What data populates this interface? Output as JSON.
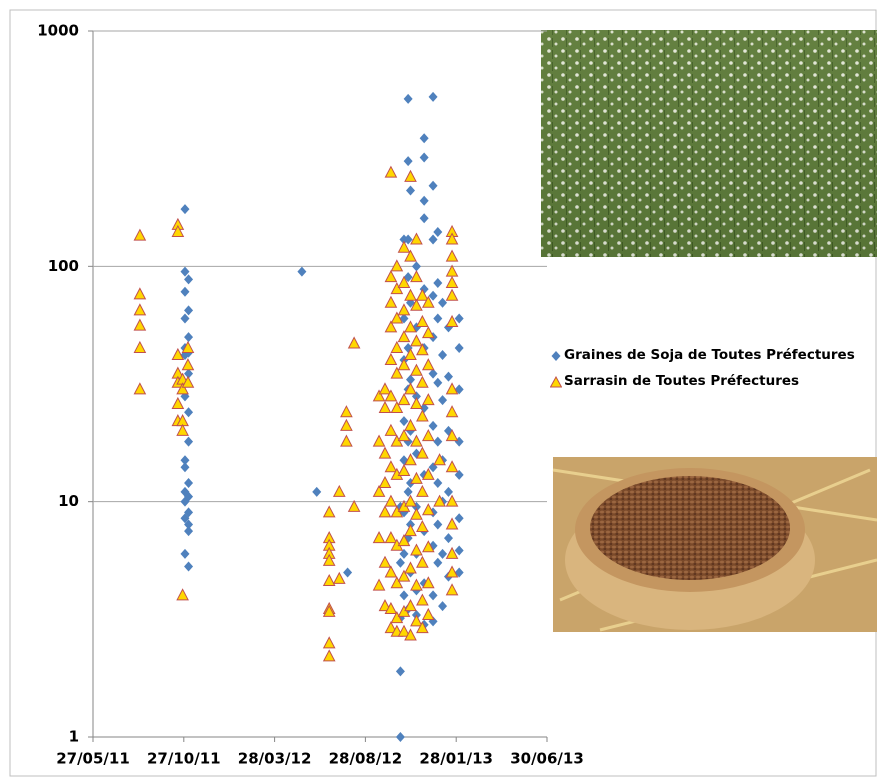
{
  "chart_data": {
    "type": "scatter",
    "ylog": true,
    "grid": true,
    "ylim": [
      1,
      1000
    ],
    "yticks": [
      1,
      10,
      100,
      1000
    ],
    "xlim": [
      "27/05/11",
      "30/06/13"
    ],
    "xticks": [
      "27/05/11",
      "27/10/11",
      "28/03/12",
      "28/08/12",
      "28/01/13",
      "30/06/13"
    ],
    "series": [
      {
        "name": "Graines de Soja de Toutes Préfectures",
        "color": "#4f81bd",
        "marker": "diamond",
        "x": [
          "29/10/11",
          "29/10/11",
          "29/10/11",
          "29/10/11",
          "29/10/11",
          "29/10/11",
          "29/10/11",
          "29/10/11",
          "29/10/11",
          "29/10/11",
          "29/10/11",
          "29/10/11",
          "29/10/11",
          "04/11/11",
          "04/11/11",
          "04/11/11",
          "04/11/11",
          "04/11/11",
          "04/11/11",
          "04/11/11",
          "04/11/11",
          "04/11/11",
          "04/11/11",
          "04/11/11",
          "04/11/11",
          "04/11/11",
          "13/05/12",
          "07/06/12",
          "29/07/12",
          "26/10/12",
          "26/10/12",
          "26/10/12",
          "26/10/12",
          "26/10/12",
          "01/11/12",
          "01/11/12",
          "01/11/12",
          "01/11/12",
          "01/11/12",
          "01/11/12",
          "01/11/12",
          "01/11/12",
          "08/11/12",
          "08/11/12",
          "08/11/12",
          "08/11/12",
          "08/11/12",
          "08/11/12",
          "08/11/12",
          "08/11/12",
          "08/11/12",
          "08/11/12",
          "12/11/12",
          "12/11/12",
          "12/11/12",
          "12/11/12",
          "12/11/12",
          "12/11/12",
          "12/11/12",
          "22/11/12",
          "22/11/12",
          "22/11/12",
          "22/11/12",
          "22/11/12",
          "22/11/12",
          "22/11/12",
          "22/11/12",
          "05/12/12",
          "05/12/12",
          "05/12/12",
          "05/12/12",
          "05/12/12",
          "05/12/12",
          "05/12/12",
          "05/12/12",
          "05/12/12",
          "05/12/12",
          "05/12/12",
          "20/12/12",
          "20/12/12",
          "20/12/12",
          "20/12/12",
          "20/12/12",
          "20/12/12",
          "20/12/12",
          "20/12/12",
          "20/12/12",
          "20/12/12",
          "20/12/12",
          "20/12/12",
          "28/12/12",
          "28/12/12",
          "28/12/12",
          "28/12/12",
          "28/12/12",
          "28/12/12",
          "28/12/12",
          "28/12/12",
          "05/01/13",
          "05/01/13",
          "05/01/13",
          "05/01/13",
          "05/01/13",
          "05/01/13",
          "05/01/13",
          "15/01/13",
          "15/01/13",
          "15/01/13",
          "15/01/13",
          "15/01/13",
          "15/01/13",
          "02/02/13",
          "02/02/13",
          "02/02/13",
          "02/02/13",
          "02/02/13",
          "02/02/13",
          "02/02/13",
          "02/02/13"
        ],
        "values": [
          175,
          95,
          78,
          60,
          45,
          42,
          28,
          15,
          14,
          11,
          10,
          8.5,
          6,
          88,
          65,
          50,
          43,
          35,
          24,
          18,
          12,
          10.5,
          9,
          8,
          7.5,
          5.3,
          95,
          11,
          5,
          1.9,
          1,
          9.5,
          5.5,
          3.2,
          130,
          60,
          40,
          22,
          15,
          9,
          6,
          4,
          515,
          280,
          130,
          90,
          45,
          30,
          18,
          11,
          7,
          3.5,
          210,
          70,
          33,
          20,
          12,
          8,
          5,
          100,
          55,
          28,
          16,
          9.5,
          6,
          4.2,
          3.3,
          350,
          290,
          190,
          160,
          80,
          45,
          25,
          13,
          7.5,
          4.5,
          3,
          525,
          220,
          130,
          75,
          50,
          35,
          21,
          14,
          9,
          6.5,
          4,
          3.1,
          140,
          85,
          60,
          32,
          18,
          12,
          8,
          5.5,
          70,
          42,
          27,
          15,
          10,
          6,
          3.6,
          55,
          34,
          20,
          11,
          7,
          4.8,
          60,
          45,
          30,
          18,
          13,
          8.5,
          6.2,
          5
        ]
      },
      {
        "name": "Sarrasin de Toutes Préfectures",
        "color": "#ffd700",
        "marker": "triangle",
        "x": [
          "14/08/11",
          "14/08/11",
          "14/08/11",
          "14/08/11",
          "14/08/11",
          "14/08/11",
          "17/10/11",
          "17/10/11",
          "17/10/11",
          "17/10/11",
          "17/10/11",
          "17/10/11",
          "17/10/11",
          "25/10/11",
          "25/10/11",
          "25/10/11",
          "25/10/11",
          "25/10/11",
          "03/11/11",
          "03/11/11",
          "03/11/11",
          "28/06/12",
          "28/06/12",
          "28/06/12",
          "28/06/12",
          "28/06/12",
          "28/06/12",
          "28/06/12",
          "28/06/12",
          "28/06/12",
          "28/06/12",
          "15/07/12",
          "15/07/12",
          "27/07/12",
          "27/07/12",
          "27/07/12",
          "09/08/12",
          "09/08/12",
          "20/09/12",
          "20/09/12",
          "20/09/12",
          "20/09/12",
          "20/09/12",
          "30/09/12",
          "30/09/12",
          "30/09/12",
          "30/09/12",
          "30/09/12",
          "30/09/12",
          "30/09/12",
          "10/10/12",
          "10/10/12",
          "10/10/12",
          "10/10/12",
          "10/10/12",
          "10/10/12",
          "10/10/12",
          "10/10/12",
          "10/10/12",
          "10/10/12",
          "10/10/12",
          "10/10/12",
          "10/10/12",
          "20/10/12",
          "20/10/12",
          "20/10/12",
          "20/10/12",
          "20/10/12",
          "20/10/12",
          "20/10/12",
          "20/10/12",
          "20/10/12",
          "20/10/12",
          "20/10/12",
          "20/10/12",
          "20/10/12",
          "01/11/12",
          "01/11/12",
          "01/11/12",
          "01/11/12",
          "01/11/12",
          "01/11/12",
          "01/11/12",
          "01/11/12",
          "01/11/12",
          "01/11/12",
          "01/11/12",
          "01/11/12",
          "01/11/12",
          "12/11/12",
          "12/11/12",
          "12/11/12",
          "12/11/12",
          "12/11/12",
          "12/11/12",
          "12/11/12",
          "12/11/12",
          "12/11/12",
          "12/11/12",
          "12/11/12",
          "12/11/12",
          "12/11/12",
          "22/11/12",
          "22/11/12",
          "22/11/12",
          "22/11/12",
          "22/11/12",
          "22/11/12",
          "22/11/12",
          "22/11/12",
          "22/11/12",
          "22/11/12",
          "22/11/12",
          "22/11/12",
          "02/12/12",
          "02/12/12",
          "02/12/12",
          "02/12/12",
          "02/12/12",
          "02/12/12",
          "02/12/12",
          "02/12/12",
          "02/12/12",
          "02/12/12",
          "02/12/12",
          "12/12/12",
          "12/12/12",
          "12/12/12",
          "12/12/12",
          "12/12/12",
          "12/12/12",
          "12/12/12",
          "12/12/12",
          "12/12/12",
          "12/12/12",
          "31/12/12",
          "31/12/12",
          "21/01/13",
          "21/01/13",
          "21/01/13",
          "21/01/13",
          "21/01/13",
          "21/01/13",
          "21/01/13",
          "21/01/13",
          "21/01/13",
          "21/01/13",
          "21/01/13",
          "21/01/13",
          "21/01/13",
          "21/01/13",
          "21/01/13",
          "21/01/13"
        ],
        "values": [
          135,
          76,
          65,
          56,
          45,
          30,
          150,
          140,
          42,
          35,
          32,
          26,
          22,
          33,
          30,
          22,
          20,
          4,
          45,
          38,
          32,
          9,
          7,
          6.5,
          6,
          5.6,
          4.6,
          3.5,
          3.4,
          2.5,
          2.2,
          11,
          4.7,
          24,
          21,
          18,
          47,
          9.5,
          28,
          18,
          11,
          7,
          4.4,
          30,
          25,
          16,
          12,
          9,
          5.5,
          3.6,
          250,
          90,
          70,
          55,
          40,
          28,
          20,
          14,
          10,
          7,
          5,
          3.5,
          2.9,
          100,
          80,
          60,
          45,
          35,
          25,
          18,
          13,
          9,
          6.5,
          4.5,
          3.2,
          2.8,
          120,
          85,
          65,
          50,
          38,
          27,
          19,
          13.5,
          9.5,
          6.8,
          4.8,
          3.4,
          2.8,
          240,
          110,
          75,
          55,
          42,
          30,
          21,
          15,
          10,
          7.5,
          5.2,
          3.6,
          2.7,
          130,
          90,
          68,
          48,
          36,
          26,
          18,
          12.5,
          8.8,
          6.2,
          4.4,
          3.1,
          75,
          58,
          44,
          32,
          23,
          16,
          11,
          7.8,
          5.5,
          3.8,
          2.9,
          70,
          52,
          38,
          27,
          19,
          13,
          9.2,
          6.4,
          4.5,
          3.3,
          15,
          10,
          140,
          130,
          110,
          95,
          85,
          75,
          58,
          30,
          24,
          19,
          14,
          10,
          8,
          6,
          5,
          4.2
        ]
      }
    ]
  }
}
